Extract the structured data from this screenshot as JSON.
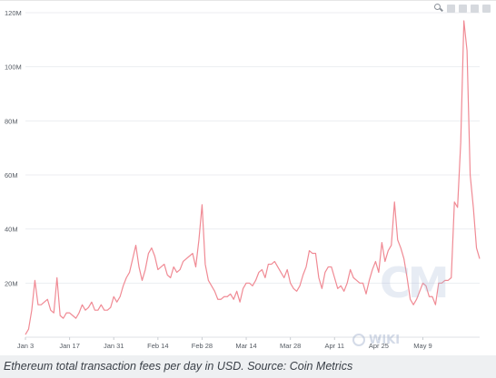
{
  "toolbar": {
    "icons": [
      "zoom-in-icon",
      "zoom-box-icon",
      "pan-icon",
      "reset-icon",
      "fullscreen-icon"
    ]
  },
  "watermarks": {
    "coinmetrics_logo": "CM",
    "wiki_text": "WIKI"
  },
  "caption": "Ethereum total transaction fees per day in USD. Source: Coin Metrics",
  "chart_data": {
    "type": "line",
    "title": "",
    "xlabel": "",
    "ylabel": "",
    "ylim": [
      0,
      120
    ],
    "y_unit": "M",
    "y_ticks": [
      "20M",
      "40M",
      "60M",
      "80M",
      "100M",
      "120M"
    ],
    "y_tick_values": [
      20,
      40,
      60,
      80,
      100,
      120
    ],
    "x_ticks": [
      "Jan 3",
      "Jan 17",
      "Jan 31",
      "Feb 14",
      "Feb 28",
      "Mar 14",
      "Mar 28",
      "Apr 11",
      "Apr 25",
      "May 9"
    ],
    "x_tick_index": [
      0,
      14,
      28,
      42,
      56,
      70,
      84,
      98,
      112,
      126
    ],
    "x_start": "2021-01-01",
    "grid": true,
    "line_color": "#f08a94",
    "series": [
      {
        "values": [
          1,
          3,
          10,
          21,
          12,
          12,
          13,
          14,
          10,
          9,
          22,
          8,
          7,
          9,
          9,
          8,
          7,
          9,
          12,
          10,
          11,
          13,
          10,
          10,
          12,
          10,
          10,
          11,
          15,
          13,
          15,
          19,
          22,
          24,
          29,
          34,
          26,
          21,
          25,
          31,
          33,
          30,
          25,
          26,
          27,
          23,
          22,
          26,
          24,
          25,
          28,
          29,
          30,
          31,
          26,
          36,
          49,
          27,
          21,
          19,
          17,
          14,
          14,
          15,
          15,
          16,
          14,
          17,
          13,
          18,
          20,
          20,
          19,
          21,
          24,
          25,
          22,
          27,
          27,
          28,
          26,
          24,
          22,
          25,
          20,
          18,
          17,
          19,
          23,
          26,
          32,
          31,
          31,
          22,
          18,
          24,
          26,
          26,
          22,
          18,
          19,
          17,
          20,
          25,
          22,
          21,
          20,
          20,
          16,
          21,
          25,
          28,
          24,
          35,
          28,
          32,
          34,
          50,
          36,
          33,
          29,
          22,
          14,
          12,
          14,
          17,
          20,
          19,
          15,
          15,
          12,
          20,
          20,
          21,
          21,
          22,
          50,
          48,
          72,
          117,
          106,
          60,
          48,
          33,
          29
        ]
      }
    ]
  }
}
